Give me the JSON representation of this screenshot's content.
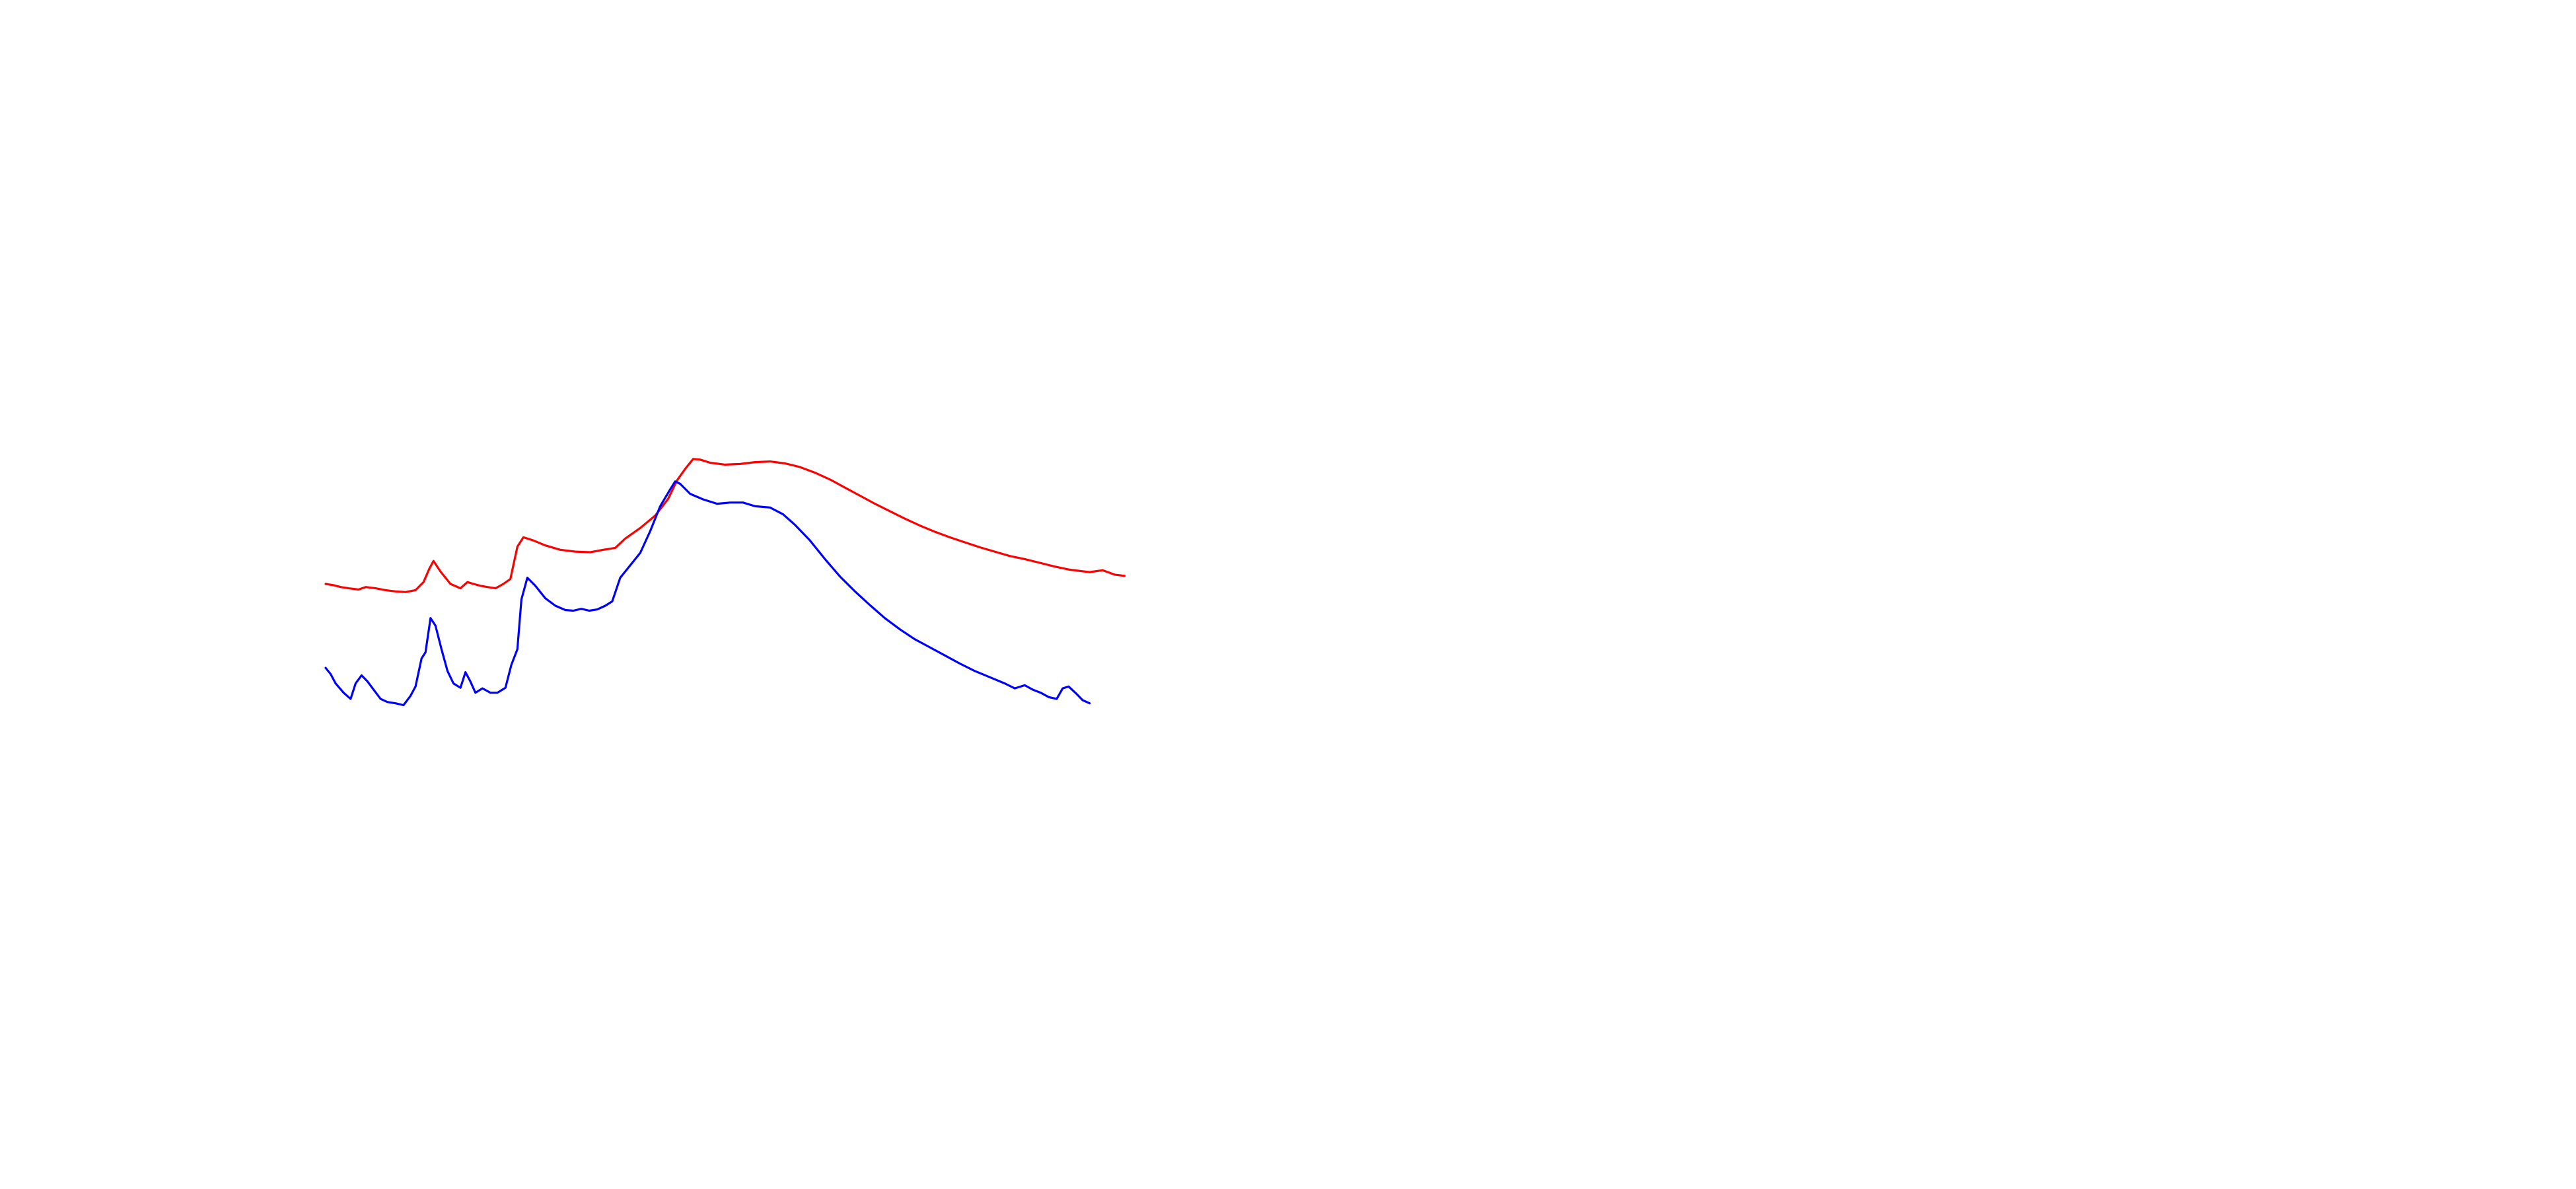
{
  "chart_data": {
    "type": "line",
    "title": "",
    "xlabel": "",
    "ylabel": "",
    "grid": false,
    "axes_visible": false,
    "legend": "none",
    "xlim": [
      0,
      1
    ],
    "ylim": [
      0,
      1
    ],
    "series": [
      {
        "key": "upper",
        "color": "#ff0000",
        "points": [
          [
            0.0,
            0.475
          ],
          [
            0.008,
            0.473
          ],
          [
            0.015,
            0.47
          ],
          [
            0.023,
            0.468
          ],
          [
            0.033,
            0.466
          ],
          [
            0.04,
            0.47
          ],
          [
            0.05,
            0.468
          ],
          [
            0.06,
            0.465
          ],
          [
            0.07,
            0.463
          ],
          [
            0.08,
            0.462
          ],
          [
            0.09,
            0.465
          ],
          [
            0.098,
            0.478
          ],
          [
            0.104,
            0.5
          ],
          [
            0.108,
            0.512
          ],
          [
            0.115,
            0.495
          ],
          [
            0.125,
            0.475
          ],
          [
            0.135,
            0.468
          ],
          [
            0.142,
            0.478
          ],
          [
            0.148,
            0.475
          ],
          [
            0.155,
            0.472
          ],
          [
            0.162,
            0.47
          ],
          [
            0.17,
            0.468
          ],
          [
            0.178,
            0.475
          ],
          [
            0.185,
            0.483
          ],
          [
            0.192,
            0.535
          ],
          [
            0.198,
            0.55
          ],
          [
            0.208,
            0.545
          ],
          [
            0.22,
            0.537
          ],
          [
            0.235,
            0.53
          ],
          [
            0.25,
            0.527
          ],
          [
            0.265,
            0.526
          ],
          [
            0.278,
            0.53
          ],
          [
            0.29,
            0.533
          ],
          [
            0.3,
            0.548
          ],
          [
            0.315,
            0.565
          ],
          [
            0.33,
            0.585
          ],
          [
            0.343,
            0.612
          ],
          [
            0.352,
            0.642
          ],
          [
            0.36,
            0.66
          ],
          [
            0.368,
            0.676
          ],
          [
            0.375,
            0.675
          ],
          [
            0.385,
            0.67
          ],
          [
            0.4,
            0.667
          ],
          [
            0.415,
            0.668
          ],
          [
            0.43,
            0.671
          ],
          [
            0.445,
            0.672
          ],
          [
            0.46,
            0.669
          ],
          [
            0.475,
            0.663
          ],
          [
            0.49,
            0.654
          ],
          [
            0.505,
            0.643
          ],
          [
            0.52,
            0.63
          ],
          [
            0.535,
            0.617
          ],
          [
            0.55,
            0.604
          ],
          [
            0.565,
            0.592
          ],
          [
            0.58,
            0.58
          ],
          [
            0.595,
            0.569
          ],
          [
            0.61,
            0.559
          ],
          [
            0.625,
            0.55
          ],
          [
            0.64,
            0.542
          ],
          [
            0.655,
            0.534
          ],
          [
            0.67,
            0.527
          ],
          [
            0.685,
            0.52
          ],
          [
            0.7,
            0.515
          ],
          [
            0.715,
            0.509
          ],
          [
            0.73,
            0.503
          ],
          [
            0.745,
            0.498
          ],
          [
            0.755,
            0.496
          ],
          [
            0.765,
            0.494
          ],
          [
            0.778,
            0.497
          ],
          [
            0.79,
            0.49
          ],
          [
            0.8,
            0.488
          ]
        ]
      },
      {
        "key": "lower",
        "color": "#0000ff",
        "points": [
          [
            0.0,
            0.34
          ],
          [
            0.005,
            0.33
          ],
          [
            0.01,
            0.315
          ],
          [
            0.018,
            0.3
          ],
          [
            0.025,
            0.29
          ],
          [
            0.03,
            0.315
          ],
          [
            0.036,
            0.328
          ],
          [
            0.042,
            0.318
          ],
          [
            0.048,
            0.305
          ],
          [
            0.055,
            0.29
          ],
          [
            0.062,
            0.285
          ],
          [
            0.07,
            0.283
          ],
          [
            0.078,
            0.28
          ],
          [
            0.085,
            0.295
          ],
          [
            0.09,
            0.31
          ],
          [
            0.096,
            0.355
          ],
          [
            0.1,
            0.365
          ],
          [
            0.105,
            0.42
          ],
          [
            0.11,
            0.408
          ],
          [
            0.116,
            0.37
          ],
          [
            0.122,
            0.335
          ],
          [
            0.128,
            0.315
          ],
          [
            0.135,
            0.308
          ],
          [
            0.14,
            0.333
          ],
          [
            0.145,
            0.318
          ],
          [
            0.15,
            0.3
          ],
          [
            0.157,
            0.307
          ],
          [
            0.165,
            0.3
          ],
          [
            0.172,
            0.3
          ],
          [
            0.18,
            0.308
          ],
          [
            0.186,
            0.345
          ],
          [
            0.192,
            0.37
          ],
          [
            0.196,
            0.45
          ],
          [
            0.202,
            0.485
          ],
          [
            0.21,
            0.472
          ],
          [
            0.22,
            0.452
          ],
          [
            0.23,
            0.44
          ],
          [
            0.24,
            0.433
          ],
          [
            0.248,
            0.432
          ],
          [
            0.256,
            0.435
          ],
          [
            0.264,
            0.432
          ],
          [
            0.272,
            0.434
          ],
          [
            0.28,
            0.44
          ],
          [
            0.287,
            0.447
          ],
          [
            0.295,
            0.485
          ],
          [
            0.305,
            0.505
          ],
          [
            0.315,
            0.525
          ],
          [
            0.325,
            0.56
          ],
          [
            0.335,
            0.6
          ],
          [
            0.345,
            0.627
          ],
          [
            0.35,
            0.64
          ],
          [
            0.355,
            0.636
          ],
          [
            0.365,
            0.62
          ],
          [
            0.378,
            0.611
          ],
          [
            0.392,
            0.604
          ],
          [
            0.405,
            0.606
          ],
          [
            0.418,
            0.606
          ],
          [
            0.43,
            0.6
          ],
          [
            0.445,
            0.598
          ],
          [
            0.458,
            0.587
          ],
          [
            0.47,
            0.57
          ],
          [
            0.485,
            0.545
          ],
          [
            0.5,
            0.515
          ],
          [
            0.515,
            0.487
          ],
          [
            0.53,
            0.463
          ],
          [
            0.545,
            0.441
          ],
          [
            0.56,
            0.42
          ],
          [
            0.575,
            0.402
          ],
          [
            0.59,
            0.386
          ],
          [
            0.605,
            0.373
          ],
          [
            0.62,
            0.36
          ],
          [
            0.635,
            0.347
          ],
          [
            0.65,
            0.335
          ],
          [
            0.665,
            0.325
          ],
          [
            0.68,
            0.315
          ],
          [
            0.69,
            0.307
          ],
          [
            0.7,
            0.312
          ],
          [
            0.708,
            0.305
          ],
          [
            0.716,
            0.3
          ],
          [
            0.724,
            0.293
          ],
          [
            0.732,
            0.29
          ],
          [
            0.738,
            0.307
          ],
          [
            0.744,
            0.31
          ],
          [
            0.752,
            0.298
          ],
          [
            0.758,
            0.288
          ],
          [
            0.765,
            0.283
          ]
        ]
      }
    ]
  }
}
